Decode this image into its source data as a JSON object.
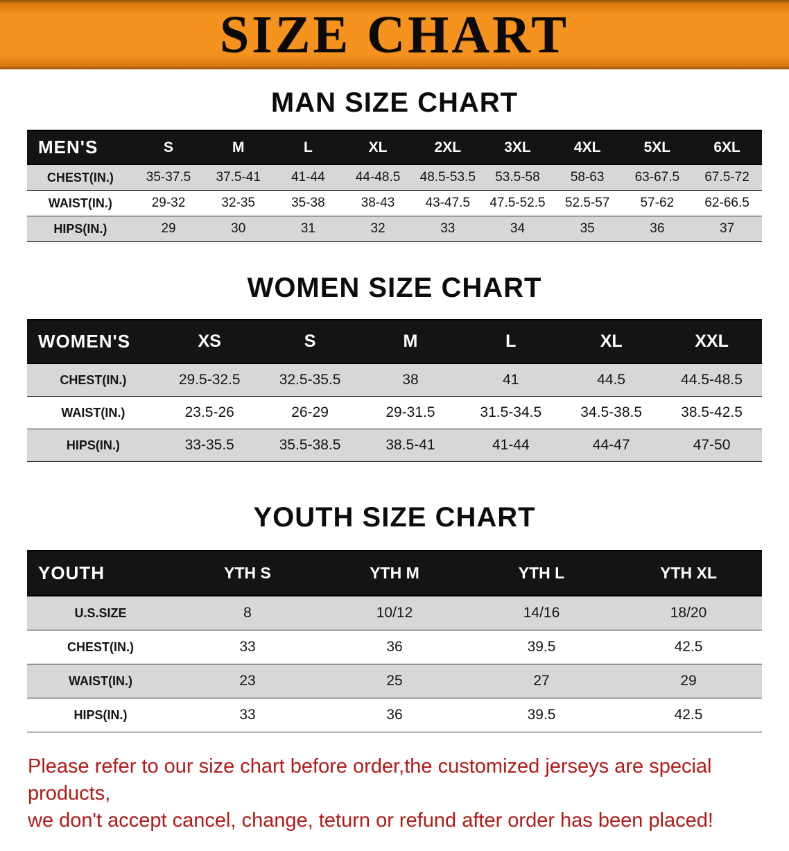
{
  "banner": {
    "title": "SIZE CHART",
    "bg_color": "#f6921e",
    "text_color": "#0a0a0a"
  },
  "tables": [
    {
      "id": "men",
      "heading": "MAN SIZE CHART",
      "header": [
        "MEN'S",
        "S",
        "M",
        "L",
        "XL",
        "2XL",
        "3XL",
        "4XL",
        "5XL",
        "6XL"
      ],
      "rows": [
        [
          "CHEST(IN.)",
          "35-37.5",
          "37.5-41",
          "41-44",
          "44-48.5",
          "48.5-53.5",
          "53.5-58",
          "58-63",
          "63-67.5",
          "67.5-72"
        ],
        [
          "WAIST(IN.)",
          "29-32",
          "32-35",
          "35-38",
          "38-43",
          "43-47.5",
          "47.5-52.5",
          "52.5-57",
          "57-62",
          "62-66.5"
        ],
        [
          "HIPS(IN.)",
          "29",
          "30",
          "31",
          "32",
          "33",
          "34",
          "35",
          "36",
          "37"
        ]
      ]
    },
    {
      "id": "women",
      "heading": "WOMEN SIZE CHART",
      "header": [
        "WOMEN'S",
        "XS",
        "S",
        "M",
        "L",
        "XL",
        "XXL"
      ],
      "rows": [
        [
          "CHEST(IN.)",
          "29.5-32.5",
          "32.5-35.5",
          "38",
          "41",
          "44.5",
          "44.5-48.5"
        ],
        [
          "WAIST(IN.)",
          "23.5-26",
          "26-29",
          "29-31.5",
          "31.5-34.5",
          "34.5-38.5",
          "38.5-42.5"
        ],
        [
          "HIPS(IN.)",
          "33-35.5",
          "35.5-38.5",
          "38.5-41",
          "41-44",
          "44-47",
          "47-50"
        ]
      ]
    },
    {
      "id": "youth",
      "heading": "YOUTH SIZE CHART",
      "header": [
        "YOUTH",
        "YTH S",
        "YTH M",
        "YTH L",
        "YTH XL"
      ],
      "rows": [
        [
          "U.S.SIZE",
          "8",
          "10/12",
          "14/16",
          "18/20"
        ],
        [
          "CHEST(IN.)",
          "33",
          "36",
          "39.5",
          "42.5"
        ],
        [
          "WAIST(IN.)",
          "23",
          "25",
          "27",
          "29"
        ],
        [
          "HIPS(IN.)",
          "33",
          "36",
          "39.5",
          "42.5"
        ]
      ]
    }
  ],
  "disclaimer": {
    "line1": "Please refer to our size chart before order,the customized jerseys are special products,",
    "line2": "we don't accept cancel, change, teturn or refund after order has been placed!",
    "text_color": "#b21a1a"
  },
  "row_colors": {
    "odd": "#d7d7d7",
    "even": "#ffffff",
    "header_bg": "#141414"
  }
}
